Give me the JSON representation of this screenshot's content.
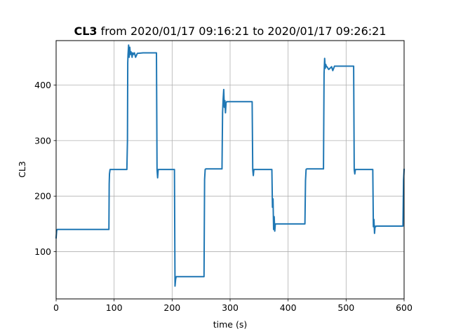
{
  "chart_data": {
    "type": "line",
    "title_bold": "CL3",
    "title_rest": " from 2020/01/17 09:16:21 to 2020/01/17 09:26:21",
    "xlabel": "time (s)",
    "ylabel": "CL3",
    "xlim": [
      0,
      600
    ],
    "ylim": [
      15,
      480
    ],
    "grid": true,
    "x_ticks": [
      0,
      100,
      200,
      300,
      400,
      500,
      600
    ],
    "y_ticks": [
      100,
      200,
      300,
      400
    ],
    "color": "#1f77b4",
    "series": [
      {
        "x": [
          0,
          1,
          2,
          91,
          91.5,
          92,
          93,
          119,
          121,
          122,
          123,
          123.5,
          124,
          125,
          126,
          127,
          128,
          129,
          130,
          131,
          132,
          133,
          135,
          137,
          140,
          150,
          160,
          172,
          173,
          174,
          175,
          176,
          180,
          202,
          203,
          204,
          205,
          206,
          207,
          208,
          210,
          255,
          256,
          257,
          258,
          286,
          287,
          288,
          289,
          290,
          291,
          292,
          293,
          294,
          300,
          310,
          320,
          338,
          339,
          340,
          341,
          360,
          371,
          372,
          373,
          374,
          375,
          376,
          377,
          378,
          380,
          385,
          429,
          430,
          431,
          432,
          461,
          462,
          463,
          464,
          465,
          466,
          467,
          470,
          475,
          477,
          480,
          490,
          512,
          513,
          514,
          515,
          516,
          520,
          545,
          546,
          547,
          548,
          549,
          550,
          551,
          552,
          555,
          598,
          599,
          600
        ],
        "y": [
          125,
          138,
          140,
          140,
          222,
          240,
          248,
          248,
          248,
          248,
          300,
          440,
          455,
          472,
          450,
          468,
          455,
          460,
          457,
          450,
          458,
          455,
          458,
          450,
          457,
          458,
          458,
          458,
          458,
          248,
          233,
          248,
          248,
          248,
          248,
          248,
          38,
          50,
          55,
          55,
          55,
          55,
          230,
          248,
          249,
          249,
          350,
          375,
          392,
          360,
          372,
          350,
          368,
          370,
          370,
          370,
          370,
          370,
          248,
          237,
          248,
          248,
          248,
          248,
          180,
          195,
          140,
          163,
          137,
          150,
          150,
          150,
          150,
          228,
          248,
          249,
          249,
          420,
          448,
          430,
          437,
          433,
          433,
          428,
          433,
          426,
          434,
          434,
          434,
          434,
          248,
          240,
          248,
          248,
          248,
          248,
          145,
          158,
          133,
          146,
          145,
          146,
          146,
          146,
          228,
          248
        ]
      }
    ]
  }
}
